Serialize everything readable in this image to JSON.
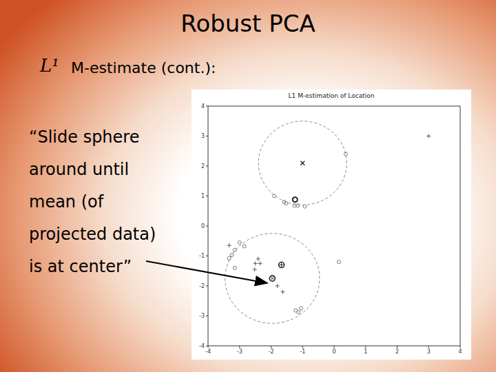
{
  "slide": {
    "title": "Robust PCA",
    "heading_symbol": "L¹",
    "heading": "M-estimate (cont.):",
    "body_lines": [
      "“Slide sphere",
      "around until",
      "mean (of",
      "projected data)",
      "is at center”"
    ]
  },
  "chart_data": {
    "type": "scatter",
    "title": "L1 M-estimation of Location",
    "xlim": [
      -4,
      4
    ],
    "ylim": [
      -4,
      4
    ],
    "xticks": [
      -4,
      -3,
      -2,
      -1,
      0,
      1,
      2,
      3,
      4
    ],
    "yticks": [
      -4,
      -3,
      -2,
      -1,
      0,
      1,
      2,
      3,
      4
    ],
    "grid": false,
    "circles": [
      {
        "center": [
          -1,
          2.1
        ],
        "radius": 1.4,
        "color": "#888888",
        "line_style": "dashed"
      },
      {
        "center": [
          -1.96,
          -1.75
        ],
        "radius": 1.5,
        "color": "#888888",
        "line_style": "dashed"
      }
    ],
    "series": [
      {
        "marker": "plus",
        "color": "#555555",
        "x": [
          3,
          -3.33,
          -2.41,
          -2.5,
          -2.35,
          -2.52,
          -1.8,
          -1.63
        ],
        "y": [
          3,
          -0.65,
          -1.1,
          -1.25,
          -1.25,
          -1.45,
          -2.0,
          -2.2
        ]
      },
      {
        "marker": "cross",
        "color": "#222222",
        "x": [
          -1
        ],
        "y": [
          2.1
        ]
      },
      {
        "marker": "bold_circle",
        "color": "#222222",
        "x": [
          -1.24
        ],
        "y": [
          0.88
        ]
      },
      {
        "marker": "circle",
        "color": "#777777",
        "x": [
          0.37,
          -1.9,
          -1.59,
          -1.52,
          -1.26,
          -1.15,
          -0.93,
          -3.0,
          -2.85,
          -3.15,
          -3.25,
          -3.33,
          -3.15,
          -1.22,
          -1.13,
          -1.05,
          0.15
        ],
        "y": [
          2.4,
          1.0,
          0.8,
          0.75,
          0.68,
          0.68,
          0.65,
          -0.55,
          -0.68,
          -0.8,
          -0.97,
          -1.08,
          -1.4,
          -2.82,
          -2.88,
          -2.75,
          -1.2
        ]
      },
      {
        "marker": "circled_plus",
        "color": "#222222",
        "x": [
          -1.67
        ],
        "y": [
          -1.3
        ]
      },
      {
        "marker": "circled_cross",
        "color": "#222222",
        "x": [
          -1.96
        ],
        "y": [
          -1.75
        ]
      }
    ]
  }
}
